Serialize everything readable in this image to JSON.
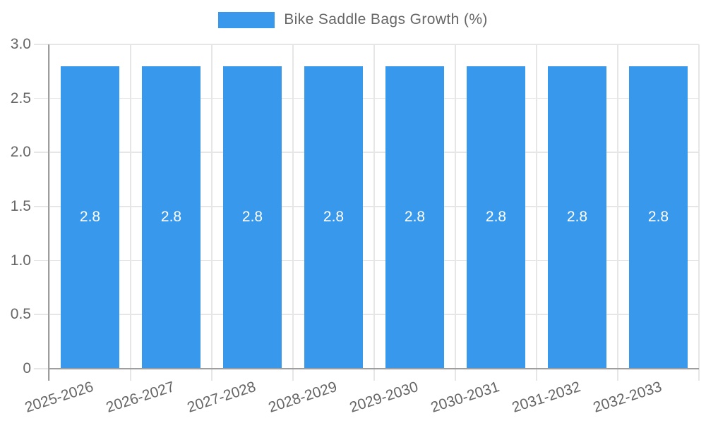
{
  "legend": {
    "label": "Bike Saddle Bags Growth (%)"
  },
  "chart_data": {
    "type": "bar",
    "title": "",
    "categories": [
      "2025-2026",
      "2026-2027",
      "2027-2028",
      "2028-2029",
      "2029-2030",
      "2030-2031",
      "2031-2032",
      "2032-2033"
    ],
    "series": [
      {
        "name": "Bike Saddle Bags Growth (%)",
        "values": [
          2.8,
          2.8,
          2.8,
          2.8,
          2.8,
          2.8,
          2.8,
          2.8
        ]
      }
    ],
    "bar_value_labels": [
      "2.8",
      "2.8",
      "2.8",
      "2.8",
      "2.8",
      "2.8",
      "2.8",
      "2.8"
    ],
    "xlabel": "",
    "ylabel": "",
    "ylim": [
      0,
      3
    ],
    "ytick_labels_top_to_bottom": [
      "3.0",
      "2.5",
      "2.0",
      "1.5",
      "1.0",
      "0.5",
      "0"
    ],
    "grid": true,
    "legend_position": "top"
  },
  "colors": {
    "bar": "#3899ec",
    "grid": "#e6e6e6",
    "axis": "#9e9e9e",
    "tick_text": "#666666",
    "bar_label_text": "#ffffff",
    "background": "#ffffff"
  }
}
